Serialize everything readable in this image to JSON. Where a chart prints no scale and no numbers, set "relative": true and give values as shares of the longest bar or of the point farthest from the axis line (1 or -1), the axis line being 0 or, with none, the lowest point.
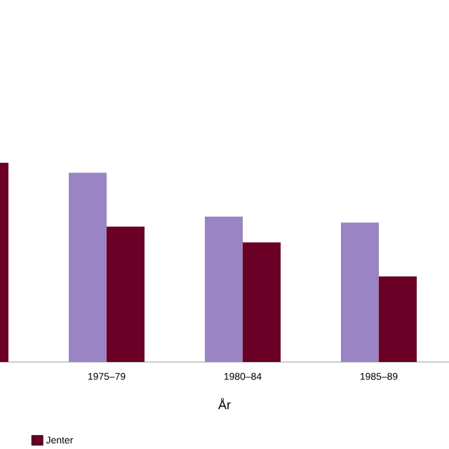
{
  "chart_data": {
    "type": "bar",
    "relative": true,
    "xlabel": "År",
    "categories": [
      null,
      "1975–79",
      "1980–84",
      "1985–89"
    ],
    "series": [
      {
        "color": "#9b84c4",
        "values": [
          null,
          0.95,
          0.73,
          0.7
        ]
      },
      {
        "name": "Jenter",
        "color": "#6b0026",
        "values": [
          1,
          0.68,
          0.6,
          0.43
        ]
      }
    ],
    "legend": "bottom left"
  }
}
